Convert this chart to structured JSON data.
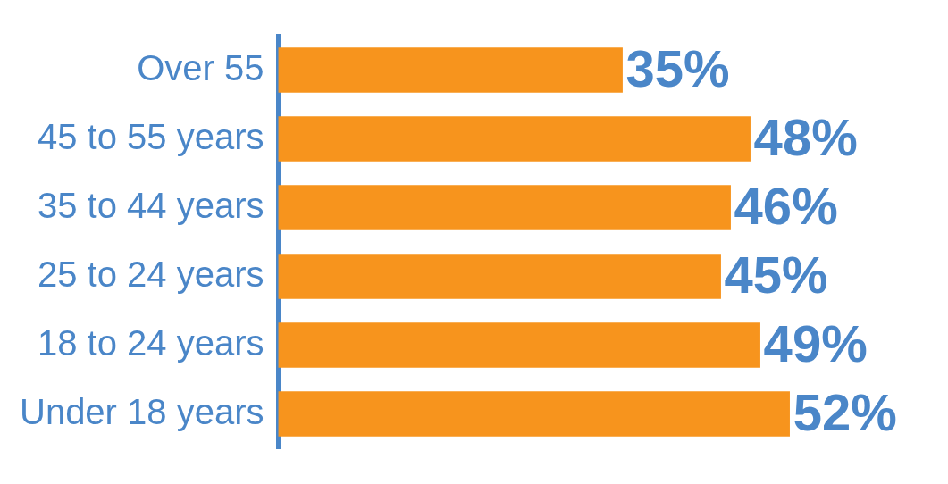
{
  "chart_data": {
    "type": "bar",
    "orientation": "horizontal",
    "categories": [
      "Over 55",
      "45 to 55 years",
      "35 to 44 years",
      "25 to 24 years",
      "18 to 24 years",
      "Under 18 years"
    ],
    "values": [
      35,
      48,
      46,
      45,
      49,
      52
    ],
    "value_labels": [
      "35%",
      "48%",
      "46%",
      "45%",
      "49%",
      "52%"
    ],
    "color": "#f7941d"
  }
}
